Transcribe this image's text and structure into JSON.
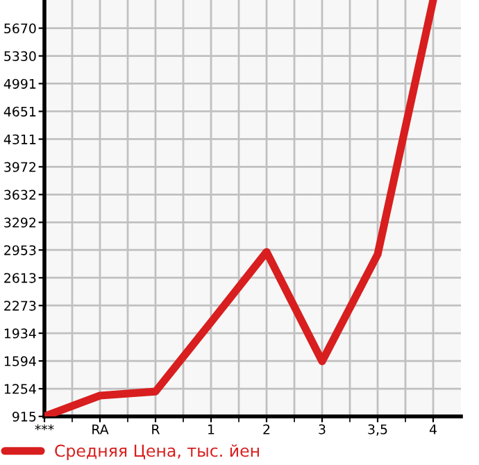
{
  "chart_data": {
    "type": "line",
    "categories": [
      "***",
      "RA",
      "R",
      "1",
      "2",
      "3",
      "3,5",
      "4"
    ],
    "series": [
      {
        "name": "Средняя Цена, тыс. йен",
        "color": "#d81e1e",
        "values": [
          915,
          1170,
          1220,
          2070,
          2930,
          1590,
          2900,
          6015
        ]
      }
    ],
    "ylim": [
      915,
      6015
    ],
    "yticks": [
      915,
      1254,
      1594,
      1934,
      2273,
      2613,
      2953,
      3292,
      3632,
      3972,
      4311,
      4651,
      4991,
      5330,
      5670
    ],
    "grid": true,
    "legend": "bottom",
    "marker": "none",
    "line_style": "solid"
  }
}
